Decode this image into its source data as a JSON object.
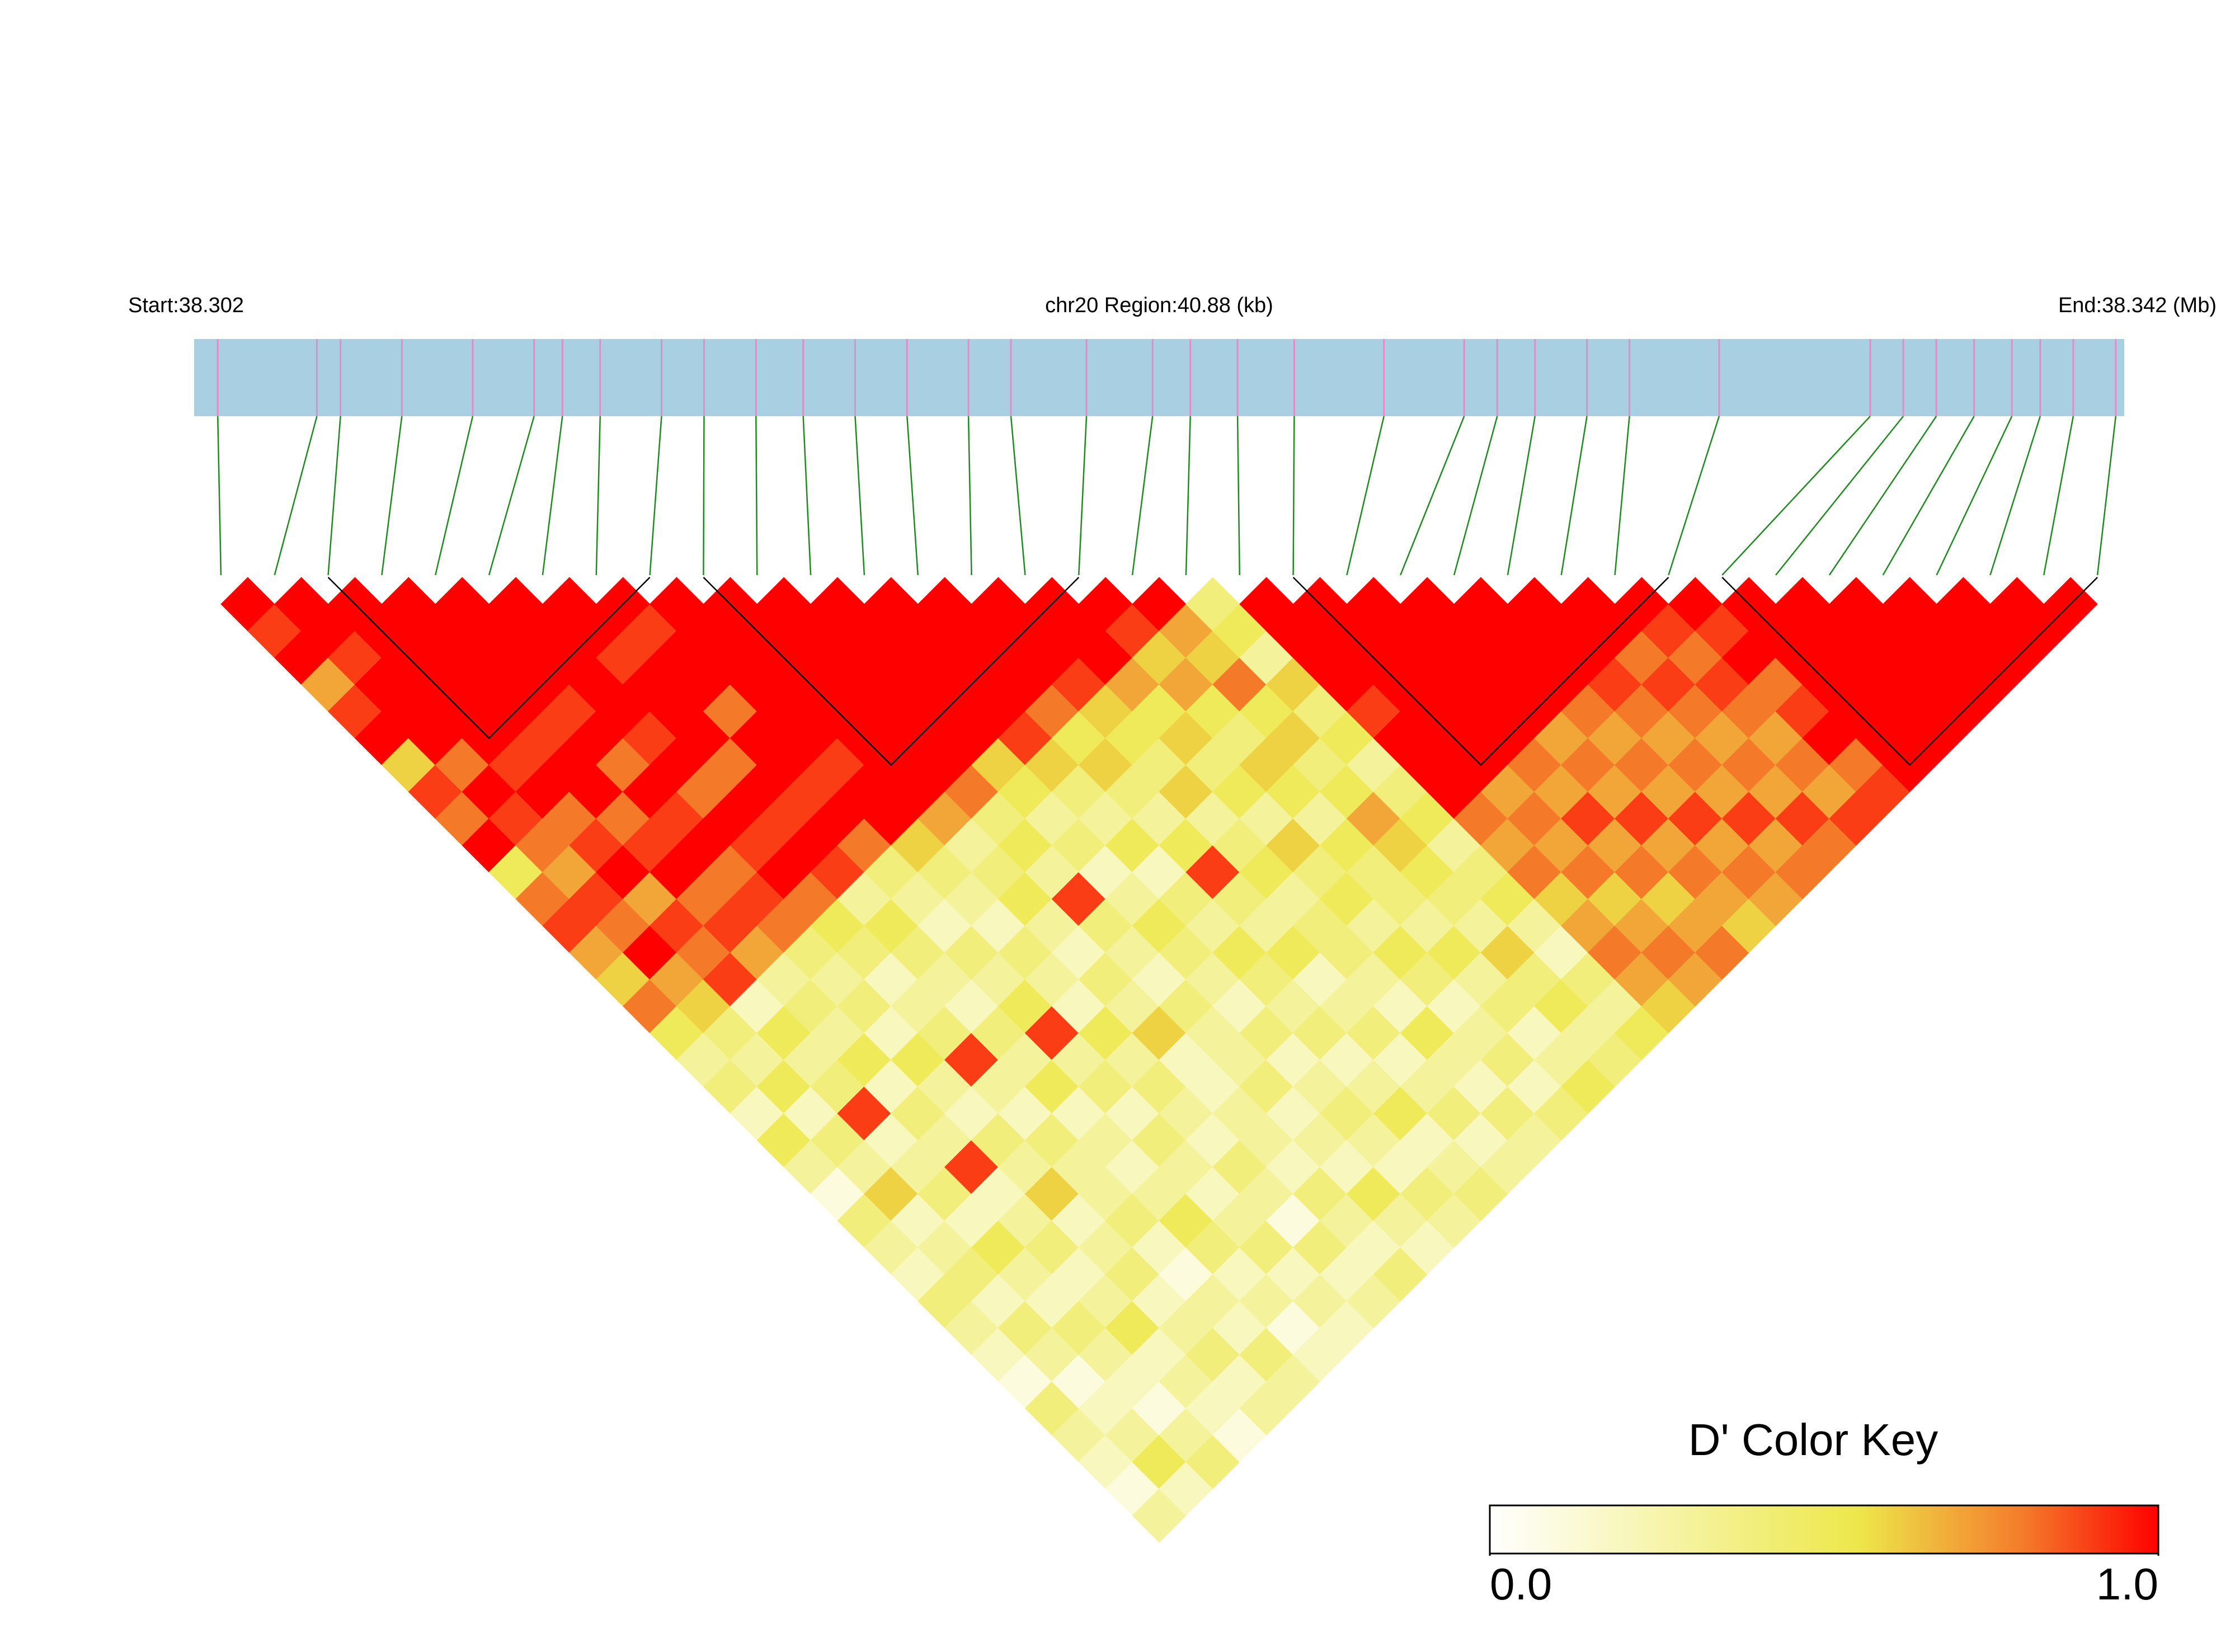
{
  "chart_data": {
    "type": "ld-heatmap",
    "start_label": "Start:38.302",
    "region_label": "chr20 Region:40.88 (kb)",
    "end_label": "End:38.342 (Mb)",
    "position_range": [
      0,
      40.88
    ],
    "positions": [
      0.5,
      2.6,
      3.1,
      4.4,
      5.9,
      7.2,
      7.8,
      8.6,
      9.9,
      10.8,
      11.9,
      12.9,
      14.0,
      15.1,
      16.4,
      17.3,
      18.9,
      20.3,
      21.1,
      22.1,
      23.3,
      25.2,
      26.9,
      27.6,
      28.4,
      29.5,
      30.4,
      32.3,
      35.5,
      36.2,
      36.9,
      37.7,
      38.5,
      39.1,
      39.8,
      40.7
    ],
    "ld": [
      [
        1,
        0.9,
        1,
        0.7,
        0.9,
        1,
        0.6,
        0.9,
        0.8,
        1,
        0.5,
        0.8,
        0.9,
        0.7,
        0.6,
        0.8,
        0.5,
        0.3,
        0.4,
        0.2,
        0.5,
        0.3,
        0.1,
        0.4,
        0.3,
        0.2,
        0.4,
        0.3,
        0.2,
        0.1,
        0.4,
        0.3,
        0.2,
        0.1,
        0.3
      ],
      [
        1,
        1,
        0.9,
        1,
        1,
        1,
        0.8,
        1,
        0.9,
        0.8,
        0.7,
        0.9,
        0.8,
        1,
        0.7,
        0.6,
        0.4,
        0.3,
        0.5,
        0.2,
        0.4,
        0.3,
        0.6,
        0.2,
        0.3,
        0.4,
        0.2,
        0.4,
        0.3,
        0.1,
        0.2,
        0.3,
        0.5,
        0.2
      ],
      [
        1,
        1,
        1,
        1,
        1,
        1,
        0.9,
        1,
        0.8,
        0.9,
        1,
        0.7,
        0.9,
        0.8,
        0.9,
        0.2,
        0.5,
        0.3,
        0.4,
        0.9,
        0.2,
        0.3,
        0.4,
        0.2,
        0.5,
        0.3,
        0.2,
        0.4,
        0.3,
        0.2,
        0.1,
        0.3,
        0.4
      ],
      [
        1,
        1,
        1,
        1,
        1,
        0.9,
        1,
        1,
        0.8,
        0.9,
        1,
        0.8,
        0.9,
        0.7,
        0.3,
        0.4,
        0.3,
        0.5,
        0.2,
        0.4,
        0.3,
        0.9,
        0.2,
        0.3,
        0.4,
        0.2,
        0.3,
        0.5,
        0.2,
        0.3,
        0.2,
        0.1
      ],
      [
        1,
        1,
        1,
        1,
        0.9,
        1,
        0.8,
        1,
        0.9,
        1,
        0.8,
        0.9,
        0.8,
        0.4,
        0.3,
        0.4,
        0.2,
        0.5,
        0.3,
        0.2,
        0.4,
        0.3,
        0.6,
        0.2,
        0.3,
        0.4,
        0.2,
        0.3,
        0.4,
        0.2,
        0.3
      ],
      [
        1,
        1,
        1,
        1,
        1,
        0.9,
        1,
        0.8,
        1,
        0.9,
        1,
        0.8,
        0.5,
        0.4,
        0.2,
        0.3,
        0.4,
        0.9,
        0.3,
        0.2,
        0.4,
        0.3,
        0.3,
        0.4,
        0.2,
        0.1,
        0.3,
        0.2,
        0.4,
        0.3
      ],
      [
        1,
        1,
        0.9,
        1,
        1,
        1,
        0.8,
        1,
        0.9,
        1,
        0.9,
        0.3,
        0.5,
        0.4,
        0.3,
        0.2,
        0.4,
        0.3,
        0.5,
        0.2,
        0.3,
        0.2,
        0.3,
        0.5,
        0.4,
        0.2,
        0.3,
        0.1,
        0.2
      ],
      [
        1,
        0.9,
        1,
        1,
        0.8,
        1,
        1,
        0.9,
        1,
        0.8,
        0.4,
        0.3,
        0.2,
        0.4,
        0.3,
        0.5,
        0.9,
        0.3,
        0.4,
        0.2,
        0.4,
        0.3,
        0.2,
        0.3,
        0.4,
        0.2,
        0.3,
        0.2
      ],
      [
        1,
        1,
        1,
        1,
        1,
        1,
        0.9,
        1,
        1,
        0.6,
        0.4,
        0.3,
        0.2,
        0.4,
        0.3,
        0.2,
        0.5,
        0.3,
        0.4,
        0.3,
        0.2,
        0.4,
        0.3,
        0.1,
        0.4,
        0.2,
        0.3
      ],
      [
        1,
        1,
        1,
        1,
        1,
        1,
        1,
        1,
        0.7,
        0.3,
        0.4,
        0.5,
        0.3,
        0.2,
        0.4,
        0.3,
        0.6,
        0.2,
        0.2,
        0.3,
        0.3,
        0.2,
        0.4,
        0.3,
        0.2,
        0.4
      ],
      [
        1,
        1,
        1,
        1,
        1,
        1,
        1,
        0.8,
        0.4,
        0.5,
        0.3,
        0.9,
        0.4,
        0.3,
        0.2,
        0.4,
        0.3,
        0.3,
        0.4,
        0.2,
        0.3,
        0.2,
        0.5,
        0.3,
        0.2
      ],
      [
        1,
        1,
        1,
        1,
        1,
        1,
        0.6,
        0.5,
        0.3,
        0.4,
        0.2,
        0.3,
        0.5,
        0.4,
        0.3,
        0.2,
        0.4,
        0.2,
        0.3,
        0.4,
        0.3,
        0.2,
        0.4,
        0.3
      ],
      [
        1,
        1,
        1,
        1,
        1,
        0.9,
        0.6,
        0.4,
        0.3,
        0.5,
        0.2,
        0.4,
        0.3,
        0.5,
        0.4,
        0.3,
        0.4,
        0.2,
        0.3,
        0.5,
        0.2,
        0.3,
        0.4
      ],
      [
        1,
        1,
        1,
        1,
        0.8,
        0.5,
        0.6,
        0.4,
        0.3,
        0.5,
        0.9,
        0.4,
        0.3,
        0.5,
        0.2,
        0.3,
        0.4,
        0.2,
        0.3,
        0.4,
        0.2,
        0.3
      ],
      [
        1,
        1,
        1,
        0.9,
        0.6,
        0.5,
        0.4,
        0.6,
        0.3,
        0.4,
        0.5,
        0.3,
        0.4,
        0.4,
        0.3,
        0.2,
        0.5,
        0.3,
        0.2,
        0.4,
        0.3
      ],
      [
        1,
        1,
        1,
        0.7,
        0.5,
        0.6,
        0.4,
        0.5,
        0.3,
        0.6,
        0.4,
        0.5,
        0.3,
        0.5,
        0.4,
        0.2,
        0.3,
        0.4,
        0.2,
        0.4
      ],
      [
        1,
        0.9,
        0.6,
        0.7,
        0.5,
        0.4,
        0.6,
        0.5,
        0.3,
        0.5,
        0.4,
        0.4,
        0.3,
        0.5,
        0.3,
        0.4,
        0.2,
        0.3,
        0.5
      ],
      [
        1,
        0.7,
        0.6,
        0.8,
        0.5,
        0.6,
        0.4,
        0.5,
        0.7,
        0.6,
        0.5,
        0.4,
        0.3,
        0.6,
        0.4,
        0.5,
        0.3,
        0.4
      ],
      [
        0.4,
        0.5,
        0.3,
        0.6,
        0.4,
        0.5,
        0.3,
        0.4,
        0.5,
        0.3,
        0.4,
        0.5,
        0.3,
        0.2,
        0.4,
        0.3,
        0.5
      ],
      [
        1,
        1,
        1,
        1,
        0.9,
        1,
        1,
        1,
        0.8,
        0.7,
        0.8,
        0.6,
        0.7,
        0.8,
        0.7,
        0.6
      ],
      [
        1,
        1,
        1,
        1,
        1,
        1,
        1,
        0.7,
        0.8,
        0.7,
        0.8,
        0.6,
        0.7,
        0.8,
        0.7
      ],
      [
        1,
        1,
        1,
        1,
        1,
        1,
        0.8,
        0.7,
        0.9,
        0.7,
        0.8,
        0.6,
        0.7,
        0.8
      ],
      [
        1,
        1,
        1,
        1,
        1,
        0.7,
        0.8,
        0.7,
        0.9,
        0.7,
        0.8,
        0.7,
        0.6
      ],
      [
        1,
        1,
        1,
        1,
        0.8,
        0.7,
        0.8,
        0.7,
        0.9,
        0.7,
        0.8,
        0.7
      ],
      [
        1,
        1,
        1,
        0.9,
        0.8,
        0.7,
        0.8,
        0.7,
        0.9,
        0.7,
        0.8
      ],
      [
        1,
        1,
        0.8,
        0.9,
        0.8,
        0.7,
        0.8,
        0.7,
        0.9,
        0.8
      ],
      [
        1,
        0.9,
        0.8,
        0.9,
        0.8,
        0.7,
        0.8,
        0.7,
        0.9
      ],
      [
        1,
        0.9,
        1,
        0.8,
        0.9,
        1,
        0.8,
        0.9
      ],
      [
        1,
        1,
        1,
        1,
        1,
        1,
        1
      ],
      [
        1,
        1,
        1,
        1,
        1,
        1
      ],
      [
        1,
        1,
        1,
        1,
        1
      ],
      [
        1,
        1,
        1,
        1
      ],
      [
        1,
        1,
        1
      ],
      [
        1,
        1
      ],
      [
        1
      ]
    ],
    "blocks": [
      [
        2,
        8
      ],
      [
        9,
        16
      ],
      [
        20,
        27
      ],
      [
        28,
        35
      ]
    ],
    "bar_color": "#a8cfe2",
    "tick_color": "#e58cc8",
    "connector_color": "#1f8a1f",
    "key": {
      "title": "D' Color Key",
      "ticks": [
        {
          "value": 0,
          "label": "0.0"
        },
        {
          "value": 1,
          "label": "1.0"
        }
      ],
      "stops": [
        {
          "value": 0,
          "color": "#ffffff"
        },
        {
          "value": 0.55,
          "color": "#ede84a"
        },
        {
          "value": 0.8,
          "color": "#f47a2a"
        },
        {
          "value": 1,
          "color": "#ff0000"
        }
      ]
    }
  }
}
